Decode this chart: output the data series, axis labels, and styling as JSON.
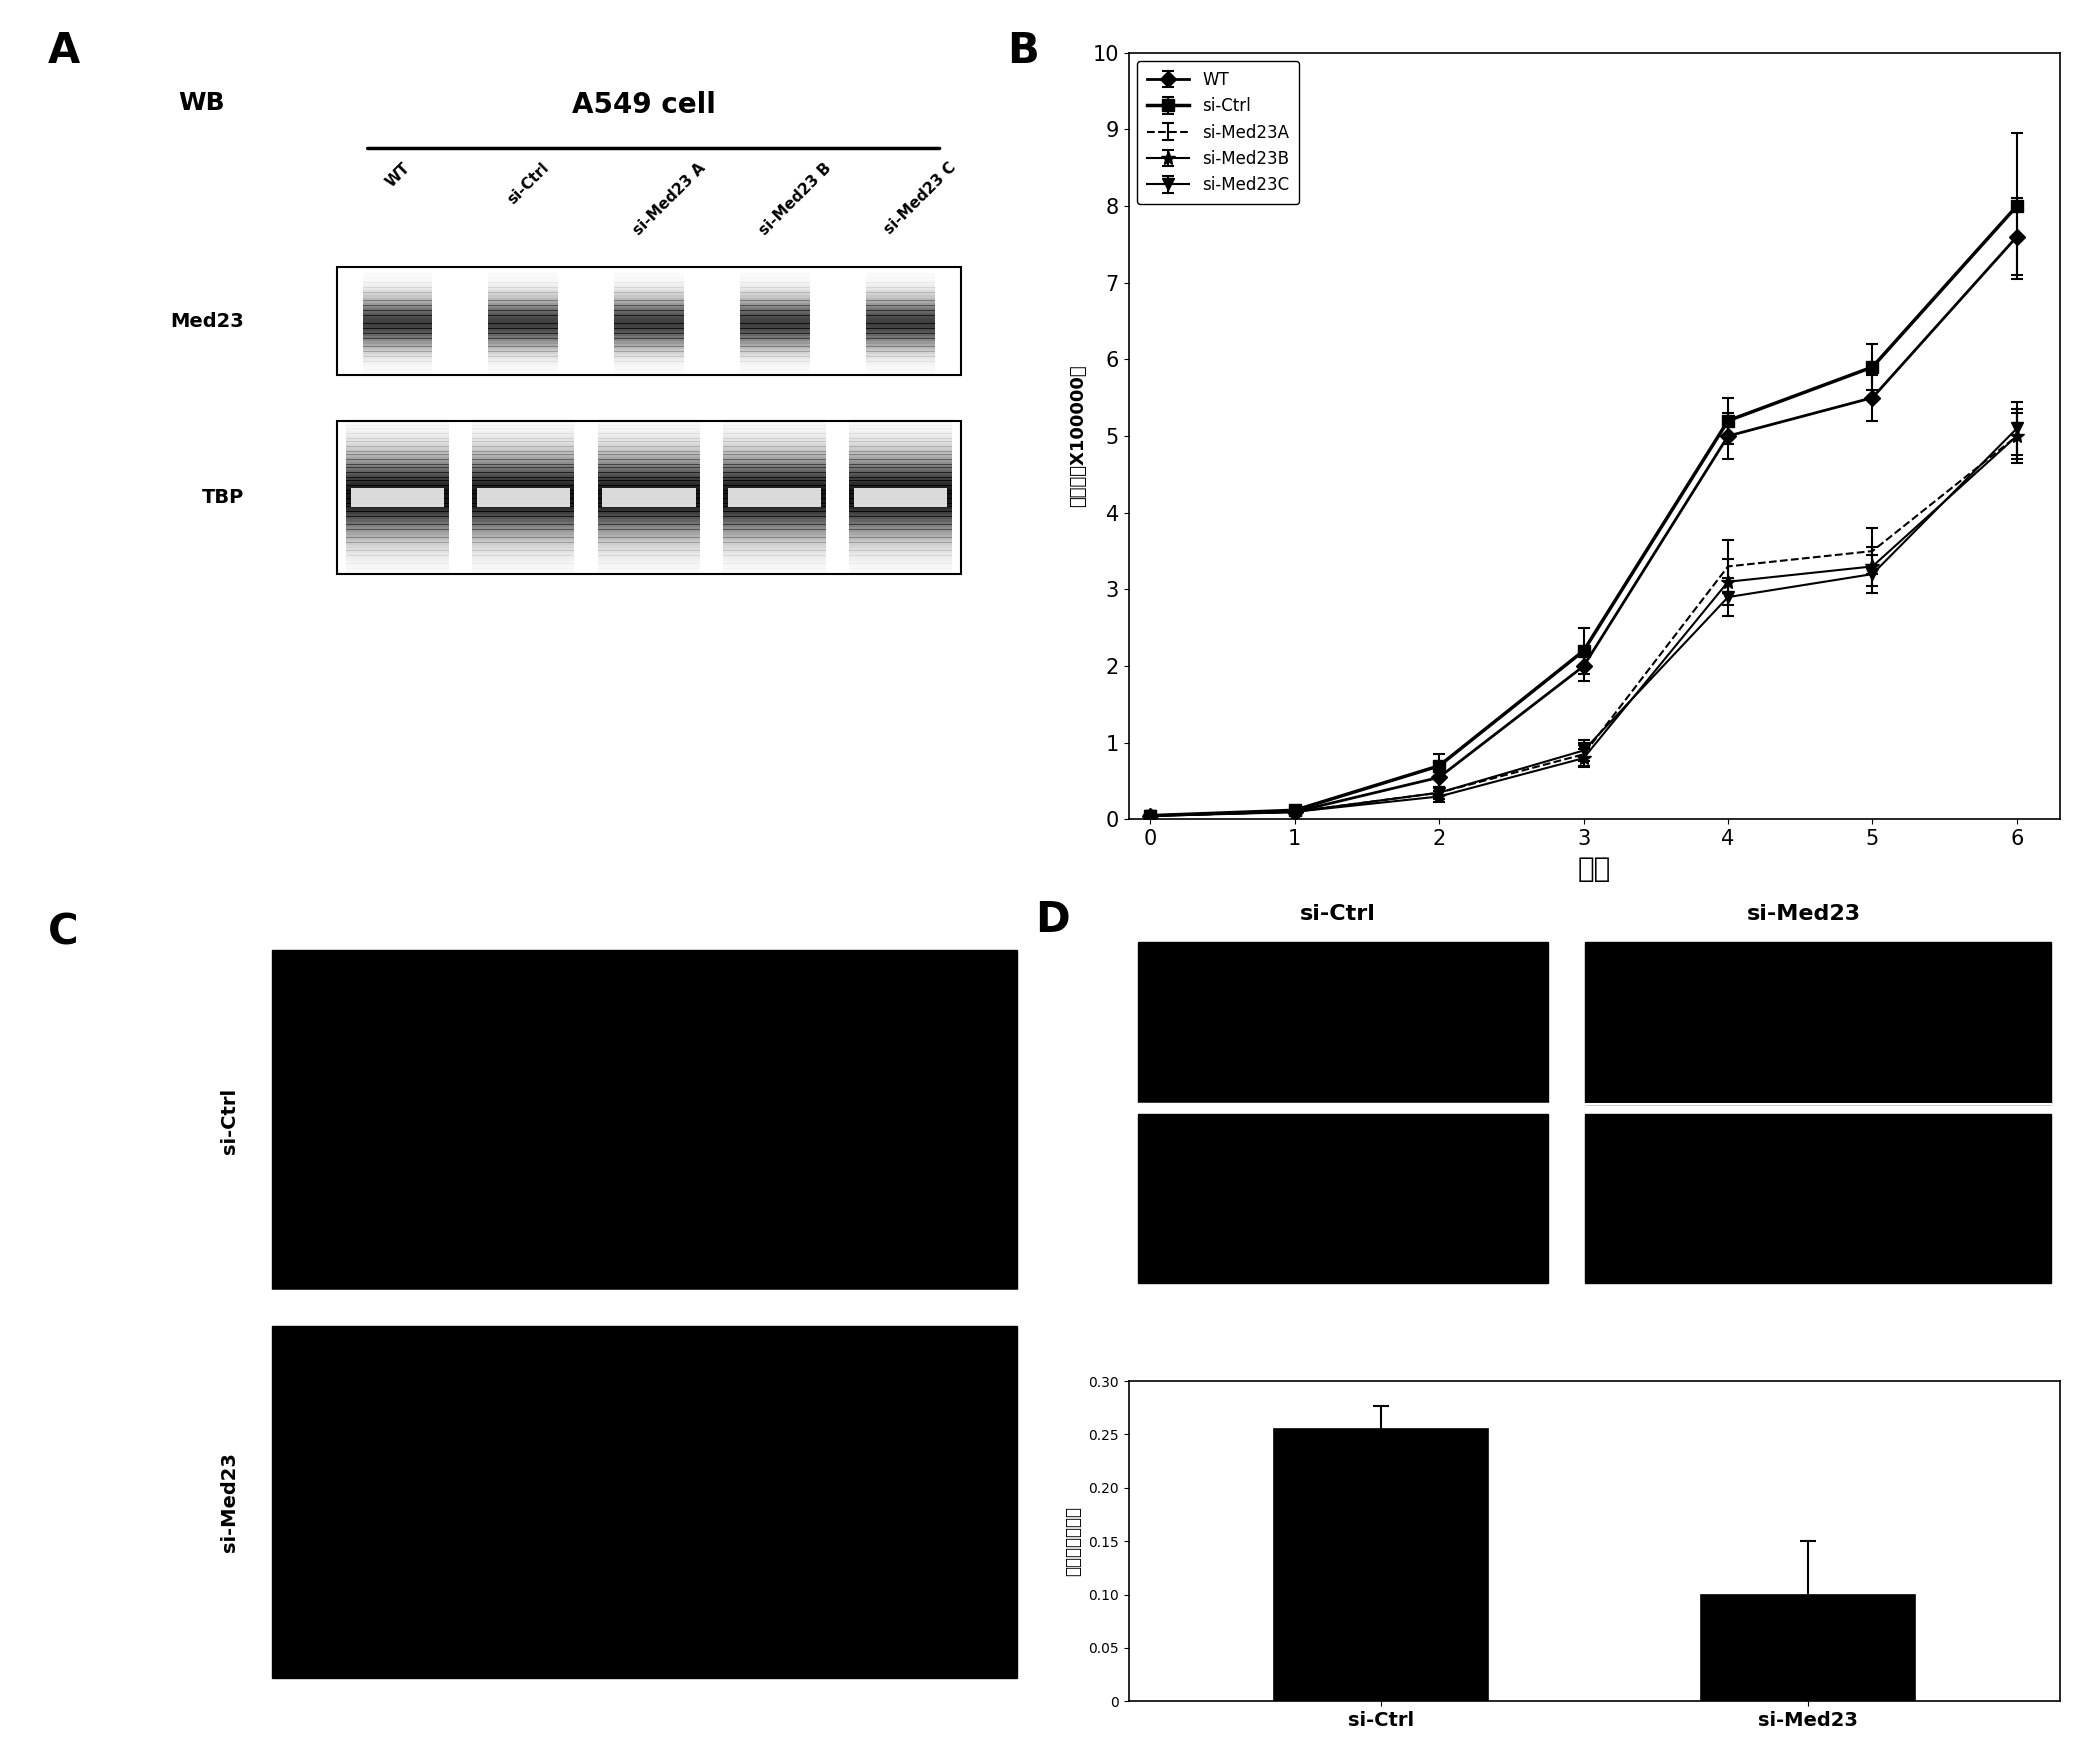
{
  "panel_A_label": "A",
  "panel_B_label": "B",
  "panel_C_label": "C",
  "panel_D_label": "D",
  "wb_label": "WB",
  "wb_title": "A549 cell",
  "wb_lanes": [
    "WT",
    "si-Ctrl",
    "si-Med23 A",
    "si-Med23 B",
    "si-Med23 C"
  ],
  "wb_row_labels": [
    "Med23",
    "TBP"
  ],
  "line_chart_xlabel": "天数",
  "line_chart_ylabel": "细胞数（X100000）",
  "line_chart_ylim": [
    0,
    10
  ],
  "line_chart_xlim": [
    0,
    6
  ],
  "line_chart_xticks": [
    0,
    1,
    2,
    3,
    4,
    5,
    6
  ],
  "line_chart_yticks": [
    0,
    1,
    2,
    3,
    4,
    5,
    6,
    7,
    8,
    9,
    10
  ],
  "line_data": {
    "WT": {
      "x": [
        0,
        1,
        2,
        3,
        4,
        5,
        6
      ],
      "y": [
        0.05,
        0.1,
        0.55,
        2.0,
        5.0,
        5.5,
        7.6
      ],
      "yerr": [
        0.01,
        0.05,
        0.12,
        0.2,
        0.3,
        0.3,
        0.5
      ],
      "marker": "D",
      "linestyle": "-",
      "color": "#000000",
      "label": "WT"
    },
    "si-Ctrl": {
      "x": [
        0,
        1,
        2,
        3,
        4,
        5,
        6
      ],
      "y": [
        0.05,
        0.12,
        0.7,
        2.2,
        5.2,
        5.9,
        8.0
      ],
      "yerr": [
        0.01,
        0.05,
        0.15,
        0.3,
        0.3,
        0.3,
        0.95
      ],
      "marker": "s",
      "linestyle": "-",
      "color": "#000000",
      "label": "si-Ctrl"
    },
    "si-Med23A": {
      "x": [
        0,
        1,
        2,
        3,
        4,
        5,
        6
      ],
      "y": [
        0.05,
        0.1,
        0.35,
        0.85,
        3.3,
        3.5,
        5.0
      ],
      "yerr": [
        0.01,
        0.04,
        0.08,
        0.15,
        0.35,
        0.3,
        0.35
      ],
      "marker": "None",
      "linestyle": "--",
      "color": "#000000",
      "label": "si-Med23A"
    },
    "si-Med23B": {
      "x": [
        0,
        1,
        2,
        3,
        4,
        5,
        6
      ],
      "y": [
        0.05,
        0.1,
        0.3,
        0.8,
        3.1,
        3.3,
        5.0
      ],
      "yerr": [
        0.01,
        0.04,
        0.07,
        0.12,
        0.3,
        0.25,
        0.3
      ],
      "marker": "*",
      "linestyle": "-",
      "color": "#000000",
      "label": "si-Med23B"
    },
    "si-Med23C": {
      "x": [
        0,
        1,
        2,
        3,
        4,
        5,
        6
      ],
      "y": [
        0.05,
        0.1,
        0.35,
        0.9,
        2.9,
        3.2,
        5.1
      ],
      "yerr": [
        0.01,
        0.04,
        0.08,
        0.14,
        0.25,
        0.25,
        0.35
      ],
      "marker": "v",
      "linestyle": "-",
      "color": "#000000",
      "label": "si-Med23C"
    }
  },
  "panel_C_labels": [
    "si-Ctrl",
    "si-Med23"
  ],
  "panel_D_image_labels": [
    "si-Ctrl",
    "si-Med23"
  ],
  "bar_categories": [
    "si-Ctrl",
    "si-Med23"
  ],
  "bar_values": [
    0.255,
    0.1
  ],
  "bar_errors": [
    0.022,
    0.05
  ],
  "bar_ylabel": "肌瘤质量（克）",
  "bar_ylim": [
    0,
    0.3
  ],
  "bar_yticks": [
    0,
    0.05,
    0.1,
    0.15,
    0.2,
    0.25,
    0.3
  ],
  "bar_color": "#000000",
  "background_color": "#ffffff",
  "text_color": "#000000"
}
